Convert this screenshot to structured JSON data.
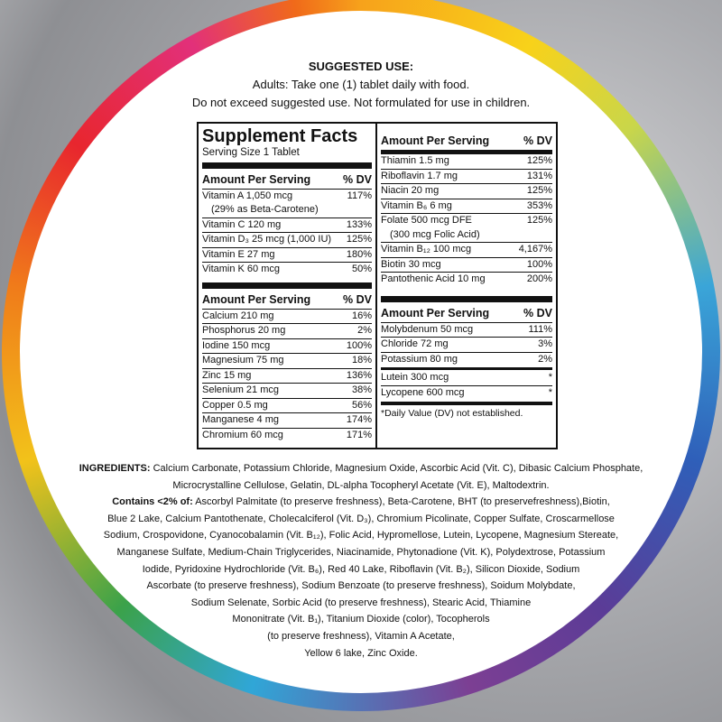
{
  "suggested_use": {
    "heading": "SUGGESTED USE:",
    "line1": "Adults: Take one (1) tablet daily with food.",
    "line2": "Do not exceed suggested use. Not formulated for use in children."
  },
  "facts": {
    "title": "Supplement Facts",
    "serving": "Serving Size 1 Tablet",
    "amount_header": "Amount Per Serving",
    "dv_header": "% DV",
    "vitamins_left": [
      {
        "name": "Vitamin A 1,050 mcg",
        "note": "(29% as Beta-Carotene)",
        "dv": "117%"
      },
      {
        "name": "Vitamin C 120 mg",
        "dv": "133%"
      },
      {
        "name": "Vitamin D₃ 25 mcg (1,000 IU)",
        "dv": "125%"
      },
      {
        "name": "Vitamin E 27 mg",
        "dv": "180%"
      },
      {
        "name": "Vitamin K 60 mcg",
        "dv": "50%"
      }
    ],
    "minerals_left": [
      {
        "name": "Calcium 210 mg",
        "dv": "16%"
      },
      {
        "name": "Phosphorus 20 mg",
        "dv": "2%"
      },
      {
        "name": "Iodine 150 mcg",
        "dv": "100%"
      },
      {
        "name": "Magnesium 75 mg",
        "dv": "18%"
      },
      {
        "name": "Zinc 15 mg",
        "dv": "136%"
      },
      {
        "name": "Selenium 21 mcg",
        "dv": "38%"
      },
      {
        "name": "Copper 0.5 mg",
        "dv": "56%"
      },
      {
        "name": "Manganese 4 mg",
        "dv": "174%"
      },
      {
        "name": "Chromium 60 mcg",
        "dv": "171%"
      }
    ],
    "vitamins_right": [
      {
        "name": "Thiamin 1.5 mg",
        "dv": "125%"
      },
      {
        "name": "Riboflavin 1.7 mg",
        "dv": "131%"
      },
      {
        "name": "Niacin 20 mg",
        "dv": "125%"
      },
      {
        "name": "Vitamin B₆ 6 mg",
        "dv": "353%"
      },
      {
        "name": "Folate 500 mcg DFE",
        "note": "(300 mcg Folic Acid)",
        "dv": "125%"
      },
      {
        "name": "Vitamin B₁₂ 100 mcg",
        "dv": "4,167%"
      },
      {
        "name": "Biotin 30 mcg",
        "dv": "100%"
      },
      {
        "name": "Pantothenic Acid 10 mg",
        "dv": "200%"
      }
    ],
    "minerals_right": [
      {
        "name": "Molybdenum 50 mcg",
        "dv": "111%"
      },
      {
        "name": "Chloride 72 mg",
        "dv": "3%"
      },
      {
        "name": "Potassium 80 mg",
        "dv": "2%"
      }
    ],
    "others": [
      {
        "name": "Lutein 300 mcg",
        "dv": "*"
      },
      {
        "name": "Lycopene 600 mcg",
        "dv": "*"
      }
    ],
    "footnote": "*Daily Value (DV) not established."
  },
  "ingredients": {
    "label": "INGREDIENTS:",
    "contains_label": "Contains <2% of:",
    "lines": [
      "Calcium Carbonate, Potassium Chloride, Magnesium Oxide, Ascorbic Acid (Vit. C), Dibasic Calcium Phosphate,",
      "Microcrystalline Cellulose, Gelatin, DL-alpha Tocopheryl Acetate (Vit. E), Maltodextrin.",
      "Ascorbyl Palmitate (to preserve freshness), Beta-Carotene, BHT (to preservefreshness),Biotin,",
      "Blue 2 Lake, Calcium Pantothenate, Cholecalciferol (Vit. D₃), Chromium Picolinate, Copper Sulfate, Croscarmellose",
      "Sodium, Crospovidone, Cyanocobalamin (Vit. B₁₂), Folic Acid, Hypromellose, Lutein, Lycopene, Magnesium Stereate,",
      "Manganese Sulfate, Medium-Chain Triglycerides, Niacinamide, Phytonadione (Vit. K), Polydextrose, Potassium",
      "Iodide, Pyridoxine Hydrochloride (Vit. B₆), Red 40 Lake, Riboflavin (Vit. B₂), Silicon Dioxide, Sodium",
      "Ascorbate (to preserve freshness), Sodium Benzoate (to preserve freshness), Soidum Molybdate,",
      "Sodium Selenate, Sorbic Acid (to preserve freshness), Stearic Acid, Thiamine",
      "Mononitrate (Vit. B₁), Titanium Dioxide (color), Tocopherols",
      "(to preserve freshness), Vitamin A Acetate,",
      "Yellow 6 lake, Zinc Oxide."
    ]
  }
}
